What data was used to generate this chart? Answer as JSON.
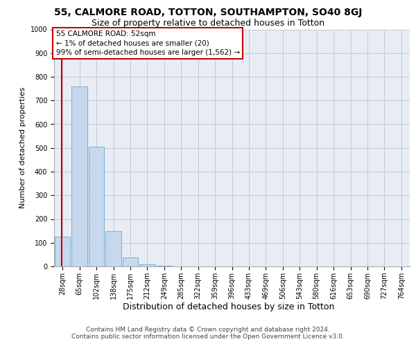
{
  "title1": "55, CALMORE ROAD, TOTTON, SOUTHAMPTON, SO40 8GJ",
  "title2": "Size of property relative to detached houses in Totton",
  "xlabel": "Distribution of detached houses by size in Totton",
  "ylabel": "Number of detached properties",
  "categories": [
    "28sqm",
    "65sqm",
    "102sqm",
    "138sqm",
    "175sqm",
    "212sqm",
    "249sqm",
    "285sqm",
    "322sqm",
    "359sqm",
    "396sqm",
    "433sqm",
    "469sqm",
    "506sqm",
    "543sqm",
    "580sqm",
    "616sqm",
    "653sqm",
    "690sqm",
    "727sqm",
    "764sqm"
  ],
  "values": [
    125,
    760,
    505,
    150,
    37,
    10,
    2,
    0,
    0,
    0,
    0,
    0,
    0,
    0,
    0,
    0,
    0,
    0,
    0,
    0,
    0
  ],
  "bar_color": "#c5d8ed",
  "bar_edge_color": "#7aafd4",
  "ylim": [
    0,
    1000
  ],
  "yticks": [
    0,
    100,
    200,
    300,
    400,
    500,
    600,
    700,
    800,
    900,
    1000
  ],
  "annotation_line1": "55 CALMORE ROAD: 52sqm",
  "annotation_line2": "← 1% of detached houses are smaller (20)",
  "annotation_line3": "99% of semi-detached houses are larger (1,562) →",
  "annotation_box_color": "#ffffff",
  "annotation_box_edge_color": "#cc0000",
  "vline_color": "#cc0000",
  "grid_color": "#c0c8d8",
  "background_color": "#e8edf5",
  "footer1": "Contains HM Land Registry data © Crown copyright and database right 2024.",
  "footer2": "Contains public sector information licensed under the Open Government Licence v3.0.",
  "title1_fontsize": 10,
  "title2_fontsize": 9,
  "xlabel_fontsize": 9,
  "ylabel_fontsize": 8,
  "tick_fontsize": 7,
  "annotation_fontsize": 7.5,
  "footer_fontsize": 6.5
}
